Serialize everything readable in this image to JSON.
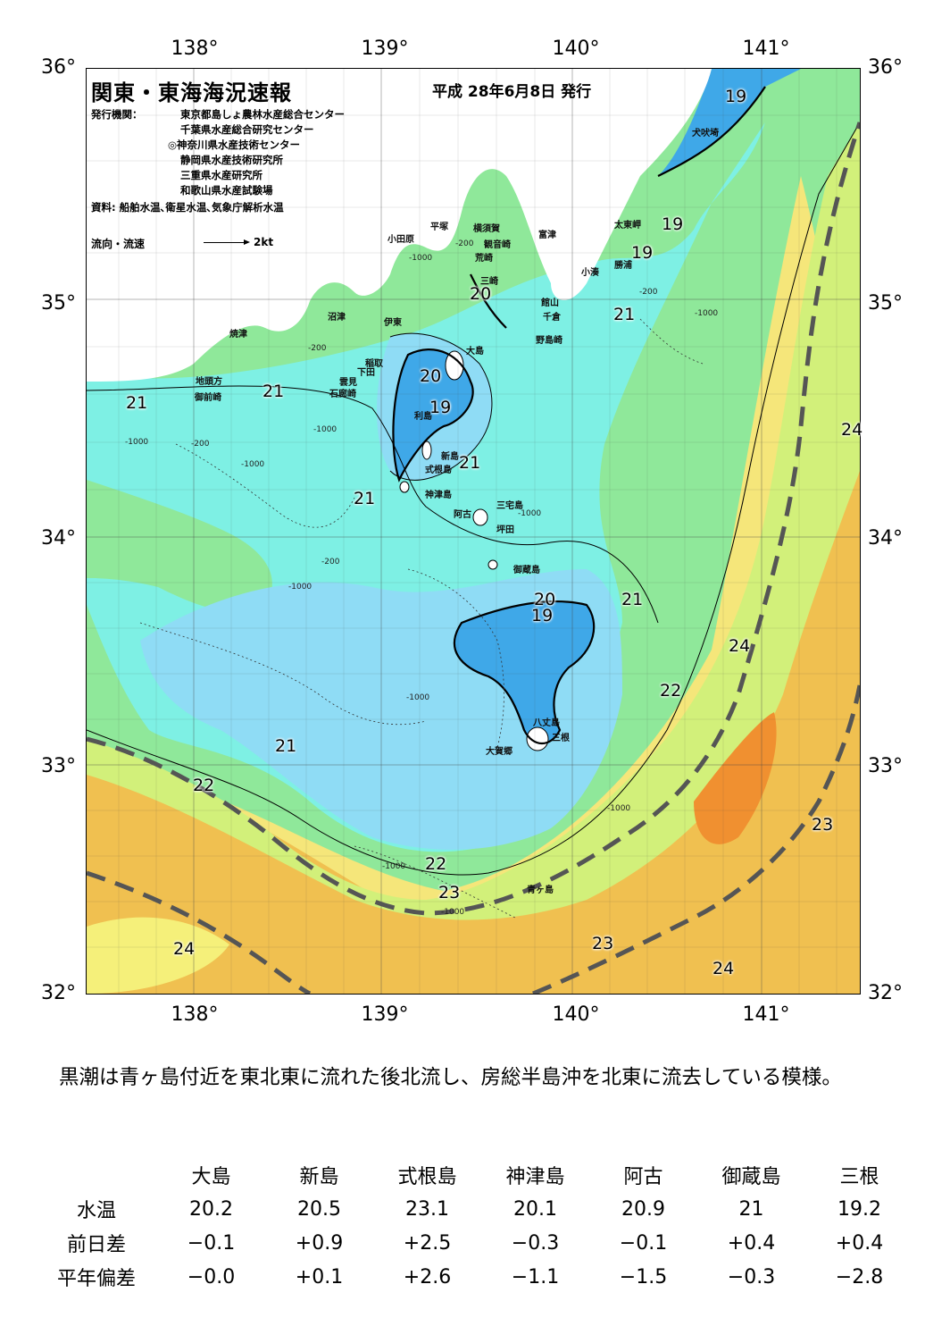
{
  "title": "関東・東海海況速報",
  "issue_date": "平成 28年6月8日 発行",
  "publishers": {
    "label": "発行機関：",
    "orgs": [
      "東京都島しょ農林水産総合センター",
      "千葉県水産総合研究センター",
      "◎神奈川県水産技術センター",
      "静岡県水産技術研究所",
      "三重県水産研究所",
      "和歌山県水産試験場"
    ],
    "sources": "資料: 船舶水温､衛星水温､気象庁解析水温"
  },
  "legend": {
    "flow_label": "流向・流速",
    "flow_unit": "2kt"
  },
  "axes": {
    "lon_labels": [
      "138°",
      "139°",
      "140°",
      "141°"
    ],
    "lat_labels": [
      "36°",
      "35°",
      "34°",
      "33°",
      "32°"
    ]
  },
  "places": [
    "犬吠埼",
    "太東岬",
    "勝浦",
    "小湊",
    "富津",
    "館山",
    "千倉",
    "野島崎",
    "横須賀",
    "観音崎",
    "平塚",
    "荒崎",
    "三崎",
    "小田原",
    "沼津",
    "伊東",
    "稲取",
    "下田",
    "雲見",
    "石廊崎",
    "焼津",
    "地頭方",
    "御前崎",
    "大島",
    "利島",
    "新島",
    "式根島",
    "神津島",
    "三宅島",
    "阿古",
    "坪田",
    "御蔵島",
    "八丈島",
    "三根",
    "大賀郷",
    "青ヶ島"
  ],
  "isotherm_labels": [
    "19",
    "19",
    "19",
    "20",
    "21",
    "21",
    "20",
    "19",
    "21",
    "21",
    "21",
    "20",
    "19",
    "21",
    "22",
    "24",
    "21",
    "22",
    "22",
    "23",
    "23",
    "24",
    "23",
    "24",
    "24"
  ],
  "depth_labels": [
    "-200",
    "-1000",
    "-200",
    "-1000",
    "-1000",
    "-200",
    "-1000",
    "-200",
    "-1000",
    "-1000",
    "-200",
    "-1000",
    "-1000",
    "-1000",
    "-1000",
    "-1000"
  ],
  "colors": {
    "deep_blue": "#3fa8e8",
    "blue": "#8fdcf5",
    "cyan": "#7ef0e4",
    "green": "#8fe89a",
    "lime": "#d2f07a",
    "yellow": "#f5e67a",
    "orange": "#f0c050",
    "dark_orange": "#f09030",
    "kuroshio_axis": "#555555",
    "land": "#ffffff"
  },
  "summary": "黒潮は青ヶ島付近を東北東に流れた後北流し、房総半島沖を北東に流去している模様。",
  "table": {
    "columns": [
      "大島",
      "新島",
      "式根島",
      "神津島",
      "阿古",
      "御蔵島",
      "三根"
    ],
    "rows": [
      {
        "label": "水温",
        "values": [
          "20.2",
          "20.5",
          "23.1",
          "20.1",
          "20.9",
          "21",
          "19.2"
        ]
      },
      {
        "label": "前日差",
        "values": [
          "−0.1",
          "+0.9",
          "+2.5",
          "−0.3",
          "−0.1",
          "+0.4",
          "+0.4"
        ]
      },
      {
        "label": "平年偏差",
        "values": [
          "−0.0",
          "+0.1",
          "+2.6",
          "−1.1",
          "−1.5",
          "−0.3",
          "−2.8"
        ]
      }
    ]
  }
}
